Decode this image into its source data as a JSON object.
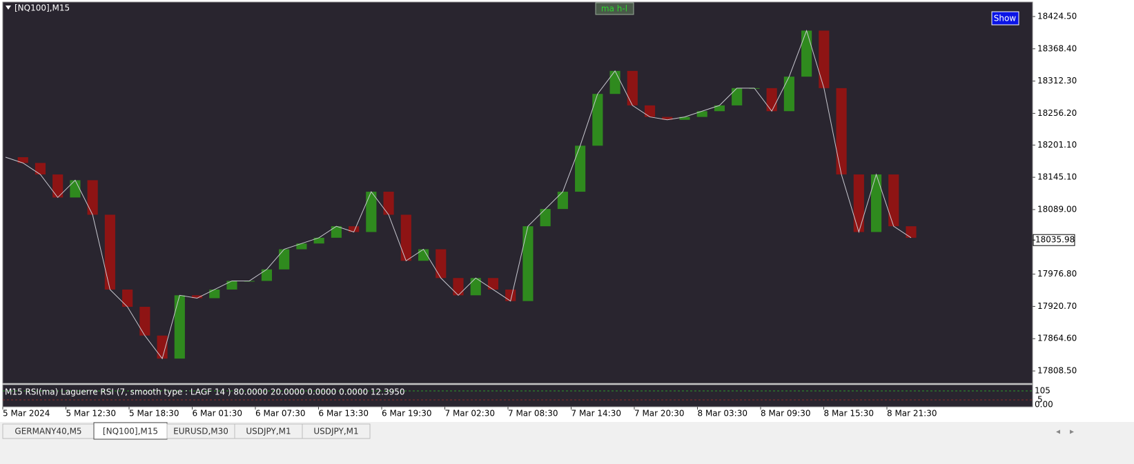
{
  "window": {
    "title": "[NQ100],M15",
    "button_ma": "ma h-l",
    "button_show": "Show"
  },
  "chart": {
    "type": "candlestick-close",
    "ylim": [
      17787,
      18449.6
    ],
    "yticks": [
      {
        "value": 18424.5,
        "label": "18424.50"
      },
      {
        "value": 18368.4,
        "label": "18368.40"
      },
      {
        "value": 18312.3,
        "label": "18312.30"
      },
      {
        "value": 18256.2,
        "label": "18256.20"
      },
      {
        "value": 18201.1,
        "label": "18201.10"
      },
      {
        "value": 18145.1,
        "label": "18145.10"
      },
      {
        "value": 18089,
        "label": "18089.00"
      },
      {
        "value": 17976.8,
        "label": "17976.80"
      },
      {
        "value": 17920.7,
        "label": "17920.70"
      },
      {
        "value": 17864.6,
        "label": "17864.60"
      },
      {
        "value": 17808.5,
        "label": "17808.50"
      }
    ],
    "current_price": 18035.98,
    "closes": [
      18180,
      18170,
      18150,
      18110,
      18140,
      18080,
      17950,
      17920,
      17870,
      17830,
      17940,
      17935,
      17950,
      17965,
      17965,
      17985,
      18020,
      18030,
      18040,
      18060,
      18050,
      18120,
      18080,
      18000,
      18020,
      17970,
      17940,
      17970,
      17950,
      17930,
      18060,
      18090,
      18120,
      18200,
      18290,
      18330,
      18270,
      18250,
      18245,
      18250,
      18260,
      18270,
      18300,
      18300,
      18260,
      18320,
      18400,
      18300,
      18150,
      18050,
      18150,
      18060,
      18040
    ],
    "up_color": "#2f8a1e",
    "down_color": "#8e1414",
    "line_color": "#c8c8d0"
  },
  "time_axis": {
    "labels": [
      "5 Mar 2024",
      "5 Mar 12:30",
      "5 Mar 18:30",
      "6 Mar 01:30",
      "6 Mar 07:30",
      "6 Mar 13:30",
      "6 Mar 19:30",
      "7 Mar 02:30",
      "7 Mar 08:30",
      "7 Mar 14:30",
      "7 Mar 20:30",
      "8 Mar 03:30",
      "8 Mar 09:30",
      "8 Mar 15:30",
      "8 Mar 21:30"
    ]
  },
  "indicator": {
    "caption": "M15 RSI(ma) Laguerre RSI (7, smooth type :  LAGF  14 ) 80.0000 20.0000 0.0000 0.0000 12.3950",
    "scale": [
      "105",
      "5",
      "0.00"
    ]
  },
  "tabs": [
    "GERMANY40,M5",
    "[NQ100],M15",
    "EURUSD,M30",
    "USDJPY,M1",
    "USDJPY,M1"
  ]
}
